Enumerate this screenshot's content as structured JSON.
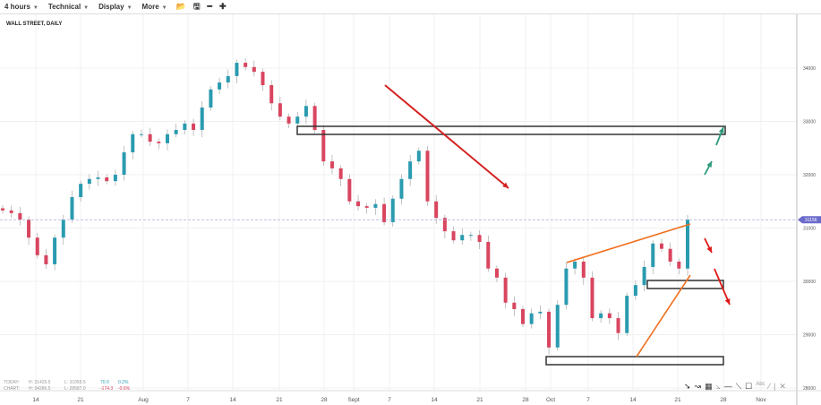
{
  "toolbar": {
    "timeframe": "4 hours",
    "technical": "Technical",
    "display": "Display",
    "more": "More",
    "icons": [
      "folder-open-icon",
      "save-icon",
      "minus-icon",
      "plus-icon"
    ]
  },
  "chart_data": {
    "type": "candlestick",
    "title": "WALL STREET, DAILY",
    "ylim": [
      27900,
      34900
    ],
    "yticks": [
      28000,
      29000,
      30000,
      31000,
      32000,
      33000,
      34000
    ],
    "xticks": [
      "14",
      "21",
      "Aug",
      "7",
      "14",
      "21",
      "28",
      "Sept",
      "7",
      "14",
      "21",
      "28",
      "Oct",
      "7",
      "14",
      "21",
      "28",
      "Nov"
    ],
    "current_price": "31156",
    "colors": {
      "up": "#2a9bb0",
      "down": "#d9455f",
      "wick": "#999999",
      "current": "#6a6acb"
    },
    "closes": [
      [
        "07-08",
        31330
      ],
      [
        "07-10",
        31280
      ],
      [
        "07-11",
        31160
      ],
      [
        "07-12",
        30820
      ],
      [
        "07-14",
        30490
      ],
      [
        "07-15",
        30320
      ],
      [
        "07-16",
        30820
      ],
      [
        "07-17",
        31160
      ],
      [
        "07-19",
        31580
      ],
      [
        "07-20",
        31830
      ],
      [
        "07-22",
        31920
      ],
      [
        "07-24",
        31950
      ],
      [
        "07-26",
        31880
      ],
      [
        "07-27",
        32000
      ],
      [
        "07-29",
        32420
      ],
      [
        "07-30",
        32760
      ],
      [
        "08-01",
        32760
      ],
      [
        "08-03",
        32620
      ],
      [
        "08-04",
        32590
      ],
      [
        "08-05",
        32760
      ],
      [
        "08-07",
        32840
      ],
      [
        "08-08",
        32960
      ],
      [
        "08-10",
        32840
      ],
      [
        "08-11",
        33260
      ],
      [
        "08-13",
        33600
      ],
      [
        "08-14",
        33730
      ],
      [
        "08-16",
        33850
      ],
      [
        "08-17",
        34100
      ],
      [
        "08-19",
        34020
      ],
      [
        "08-20",
        33930
      ],
      [
        "08-21",
        33680
      ],
      [
        "08-23",
        33340
      ],
      [
        "08-24",
        33090
      ],
      [
        "08-25",
        32960
      ],
      [
        "08-27",
        33090
      ],
      [
        "08-28",
        33290
      ],
      [
        "08-29",
        32840
      ],
      [
        "08-30",
        32250
      ],
      [
        "08-31",
        32120
      ],
      [
        "09-02",
        31920
      ],
      [
        "09-03",
        31500
      ],
      [
        "09-05",
        31410
      ],
      [
        "09-06",
        31380
      ],
      [
        "09-07",
        31450
      ],
      [
        "09-09",
        31110
      ],
      [
        "09-10",
        31550
      ],
      [
        "09-11",
        31920
      ],
      [
        "09-13",
        32250
      ],
      [
        "09-14",
        32450
      ],
      [
        "09-15",
        31500
      ],
      [
        "09-16",
        31190
      ],
      [
        "09-18",
        30940
      ],
      [
        "09-19",
        30770
      ],
      [
        "09-21",
        30870
      ],
      [
        "09-22",
        30870
      ],
      [
        "09-23",
        30740
      ],
      [
        "09-24",
        30240
      ],
      [
        "09-25",
        30070
      ],
      [
        "09-27",
        29600
      ],
      [
        "09-28",
        29480
      ],
      [
        "09-30",
        29200
      ],
      [
        "10-01",
        29400
      ],
      [
        "10-02",
        29430
      ],
      [
        "10-04",
        28760
      ],
      [
        "10-05",
        29560
      ],
      [
        "10-06",
        30240
      ],
      [
        "10-08",
        30370
      ],
      [
        "10-09",
        30070
      ],
      [
        "10-11",
        29310
      ],
      [
        "10-12",
        29400
      ],
      [
        "10-14",
        29310
      ],
      [
        "10-15",
        29030
      ],
      [
        "10-16",
        29730
      ],
      [
        "10-18",
        29930
      ],
      [
        "10-19",
        30270
      ],
      [
        "10-20",
        30710
      ],
      [
        "10-22",
        30610
      ],
      [
        "10-23",
        30370
      ],
      [
        "10-24",
        30240
      ],
      [
        "10-25",
        31156
      ]
    ]
  },
  "stats": {
    "today_label": "TODAY:",
    "today_h": "H: 31425.5",
    "today_l": "L: 31059.5",
    "today_chg": "70.0",
    "today_pct": "0.2%",
    "chart_label": "CHART:",
    "chart_h": "H: 34286.5",
    "chart_l": "L: 28587.0",
    "chart_chg": "-174.3",
    "chart_pct": "-0.6%"
  },
  "drawing_tools": [
    "arrow-tool-icon",
    "curve-tool-icon",
    "fibonacci-tool-icon",
    "fan-tool-icon",
    "horizontal-line-icon",
    "trend-line-icon",
    "rectangle-tool-icon",
    "text-tool-icon",
    "line-tool-icon",
    "separator",
    "delete-icon"
  ]
}
